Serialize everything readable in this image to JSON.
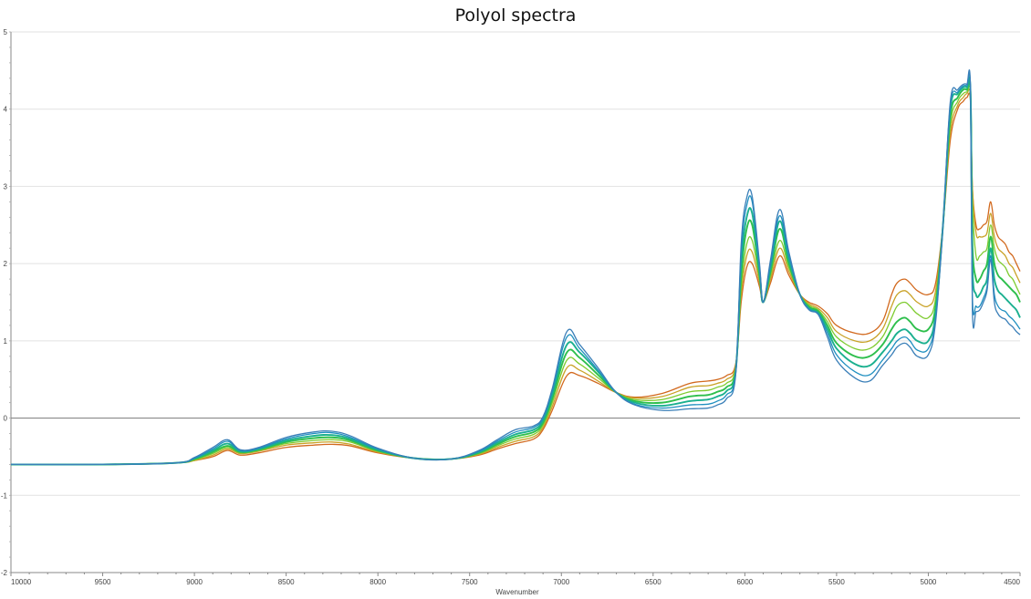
{
  "chart_data": {
    "type": "line",
    "title": "Polyol spectra",
    "xlabel": "Wavenumber",
    "ylabel": "",
    "xlim": [
      10000,
      4500
    ],
    "ylim": [
      -2,
      5
    ],
    "x_reversed": true,
    "grid": true,
    "legend": "none",
    "x_ticks": [
      "10000",
      "9500",
      "9000",
      "8500",
      "8000",
      "7500",
      "7000",
      "6500",
      "6000",
      "5500",
      "5000",
      "4500"
    ],
    "y_ticks": [
      "-2",
      "-1",
      "0",
      "1",
      "2",
      "3",
      "4",
      "5"
    ],
    "x": [
      10000,
      9500,
      9100,
      9000,
      8900,
      8820,
      8750,
      8650,
      8500,
      8350,
      8250,
      8150,
      8000,
      7800,
      7600,
      7450,
      7350,
      7250,
      7150,
      7100,
      7050,
      6970,
      6900,
      6800,
      6700,
      6600,
      6450,
      6300,
      6200,
      6150,
      6100,
      6050,
      6020,
      5990,
      5960,
      5920,
      5900,
      5860,
      5810,
      5760,
      5700,
      5650,
      5600,
      5550,
      5500,
      5400,
      5320,
      5250,
      5200,
      5170,
      5130,
      5100,
      5060,
      5000,
      4960,
      4920,
      4880,
      4840,
      4810,
      4790,
      4770,
      4760,
      4740,
      4720,
      4700,
      4680,
      4660,
      4640,
      4620,
      4600,
      4580,
      4560,
      4540,
      4520,
      4500
    ],
    "series": [
      {
        "color": "#d2691e",
        "values": [
          -0.6,
          -0.6,
          -0.58,
          -0.55,
          -0.5,
          -0.42,
          -0.48,
          -0.45,
          -0.38,
          -0.35,
          -0.34,
          -0.36,
          -0.45,
          -0.52,
          -0.53,
          -0.48,
          -0.4,
          -0.33,
          -0.27,
          -0.15,
          0.1,
          0.55,
          0.55,
          0.45,
          0.33,
          0.27,
          0.32,
          0.45,
          0.48,
          0.5,
          0.55,
          0.7,
          1.5,
          1.95,
          2.0,
          1.7,
          1.5,
          1.75,
          2.1,
          1.85,
          1.6,
          1.5,
          1.45,
          1.35,
          1.2,
          1.1,
          1.1,
          1.25,
          1.6,
          1.75,
          1.8,
          1.75,
          1.65,
          1.6,
          1.75,
          2.5,
          3.6,
          4.0,
          4.1,
          4.15,
          4.1,
          3.0,
          2.5,
          2.45,
          2.5,
          2.55,
          2.8,
          2.5,
          2.35,
          2.3,
          2.25,
          2.15,
          2.1,
          2.0,
          1.9
        ]
      },
      {
        "color": "#c9a227",
        "values": [
          -0.6,
          -0.6,
          -0.58,
          -0.55,
          -0.48,
          -0.4,
          -0.46,
          -0.43,
          -0.35,
          -0.32,
          -0.31,
          -0.34,
          -0.44,
          -0.52,
          -0.53,
          -0.47,
          -0.38,
          -0.3,
          -0.24,
          -0.12,
          0.15,
          0.65,
          0.62,
          0.48,
          0.33,
          0.26,
          0.28,
          0.4,
          0.42,
          0.45,
          0.5,
          0.68,
          1.6,
          2.1,
          2.15,
          1.75,
          1.5,
          1.8,
          2.2,
          1.9,
          1.6,
          1.48,
          1.42,
          1.3,
          1.12,
          1.0,
          1.0,
          1.15,
          1.45,
          1.6,
          1.65,
          1.6,
          1.5,
          1.45,
          1.65,
          2.5,
          3.7,
          4.05,
          4.15,
          4.2,
          4.15,
          3.0,
          2.4,
          2.35,
          2.35,
          2.4,
          2.65,
          2.35,
          2.2,
          2.15,
          2.1,
          2.0,
          1.95,
          1.85,
          1.75
        ]
      },
      {
        "color": "#7ecb2f",
        "values": [
          -0.6,
          -0.6,
          -0.58,
          -0.54,
          -0.46,
          -0.38,
          -0.45,
          -0.42,
          -0.33,
          -0.29,
          -0.28,
          -0.31,
          -0.43,
          -0.52,
          -0.53,
          -0.46,
          -0.36,
          -0.27,
          -0.21,
          -0.09,
          0.2,
          0.75,
          0.7,
          0.52,
          0.33,
          0.24,
          0.24,
          0.34,
          0.36,
          0.4,
          0.45,
          0.65,
          1.7,
          2.25,
          2.3,
          1.8,
          1.5,
          1.85,
          2.3,
          1.95,
          1.6,
          1.46,
          1.4,
          1.25,
          1.05,
          0.9,
          0.9,
          1.05,
          1.3,
          1.45,
          1.5,
          1.45,
          1.35,
          1.3,
          1.55,
          2.5,
          3.8,
          4.1,
          4.2,
          4.22,
          4.18,
          2.8,
          2.1,
          2.1,
          2.15,
          2.2,
          2.5,
          2.2,
          2.05,
          2.0,
          1.95,
          1.85,
          1.8,
          1.7,
          1.6
        ]
      },
      {
        "color": "#2ebf4c",
        "values": [
          -0.6,
          -0.6,
          -0.58,
          -0.53,
          -0.44,
          -0.36,
          -0.44,
          -0.41,
          -0.31,
          -0.26,
          -0.25,
          -0.29,
          -0.42,
          -0.52,
          -0.53,
          -0.45,
          -0.34,
          -0.24,
          -0.18,
          -0.06,
          0.25,
          0.85,
          0.78,
          0.56,
          0.33,
          0.22,
          0.2,
          0.28,
          0.3,
          0.34,
          0.4,
          0.62,
          1.85,
          2.45,
          2.5,
          1.85,
          1.5,
          1.9,
          2.45,
          2.0,
          1.6,
          1.44,
          1.38,
          1.2,
          0.97,
          0.8,
          0.8,
          0.95,
          1.15,
          1.25,
          1.3,
          1.25,
          1.15,
          1.15,
          1.45,
          2.5,
          3.9,
          4.15,
          4.25,
          4.25,
          4.2,
          2.3,
          1.8,
          1.8,
          1.9,
          2.0,
          2.35,
          2.0,
          1.85,
          1.8,
          1.75,
          1.7,
          1.65,
          1.6,
          1.5
        ]
      },
      {
        "color": "#1bb08f",
        "values": [
          -0.6,
          -0.6,
          -0.58,
          -0.52,
          -0.42,
          -0.33,
          -0.43,
          -0.4,
          -0.29,
          -0.23,
          -0.22,
          -0.27,
          -0.41,
          -0.52,
          -0.53,
          -0.44,
          -0.32,
          -0.21,
          -0.15,
          -0.03,
          0.3,
          0.95,
          0.85,
          0.6,
          0.33,
          0.2,
          0.16,
          0.22,
          0.24,
          0.28,
          0.35,
          0.6,
          2.0,
          2.6,
          2.65,
          1.9,
          1.5,
          1.95,
          2.55,
          2.05,
          1.6,
          1.42,
          1.36,
          1.15,
          0.9,
          0.7,
          0.68,
          0.85,
          1.0,
          1.1,
          1.15,
          1.1,
          1.0,
          1.0,
          1.35,
          2.5,
          4.0,
          4.2,
          4.28,
          4.28,
          4.22,
          2.0,
          1.6,
          1.6,
          1.7,
          1.8,
          2.2,
          1.8,
          1.65,
          1.6,
          1.55,
          1.5,
          1.45,
          1.4,
          1.3
        ]
      },
      {
        "color": "#1f8fc0",
        "values": [
          -0.6,
          -0.6,
          -0.58,
          -0.52,
          -0.4,
          -0.3,
          -0.42,
          -0.39,
          -0.27,
          -0.2,
          -0.19,
          -0.25,
          -0.4,
          -0.52,
          -0.53,
          -0.43,
          -0.3,
          -0.18,
          -0.12,
          0.0,
          0.35,
          1.05,
          0.9,
          0.62,
          0.33,
          0.18,
          0.13,
          0.17,
          0.18,
          0.22,
          0.3,
          0.58,
          2.15,
          2.75,
          2.8,
          1.95,
          1.5,
          2.0,
          2.62,
          2.1,
          1.6,
          1.41,
          1.35,
          1.1,
          0.82,
          0.6,
          0.56,
          0.75,
          0.9,
          1.0,
          1.05,
          1.0,
          0.88,
          0.9,
          1.3,
          2.5,
          4.05,
          4.22,
          4.3,
          4.3,
          4.24,
          1.6,
          1.45,
          1.45,
          1.55,
          1.7,
          2.1,
          1.6,
          1.45,
          1.4,
          1.38,
          1.32,
          1.28,
          1.22,
          1.15
        ]
      },
      {
        "color": "#3a7fb8",
        "values": [
          -0.6,
          -0.6,
          -0.58,
          -0.51,
          -0.38,
          -0.28,
          -0.41,
          -0.38,
          -0.25,
          -0.18,
          -0.17,
          -0.23,
          -0.39,
          -0.52,
          -0.53,
          -0.42,
          -0.28,
          -0.15,
          -0.1,
          0.02,
          0.38,
          1.12,
          0.95,
          0.65,
          0.33,
          0.17,
          0.1,
          0.12,
          0.13,
          0.17,
          0.25,
          0.56,
          2.25,
          2.85,
          2.87,
          2.0,
          1.5,
          2.05,
          2.7,
          2.15,
          1.6,
          1.4,
          1.34,
          1.05,
          0.75,
          0.52,
          0.48,
          0.68,
          0.82,
          0.92,
          0.97,
          0.92,
          0.8,
          0.82,
          1.25,
          2.5,
          4.1,
          4.25,
          4.32,
          4.32,
          4.26,
          1.4,
          1.38,
          1.4,
          1.5,
          1.65,
          2.05,
          1.5,
          1.35,
          1.3,
          1.28,
          1.22,
          1.18,
          1.12,
          1.08
        ]
      }
    ]
  }
}
